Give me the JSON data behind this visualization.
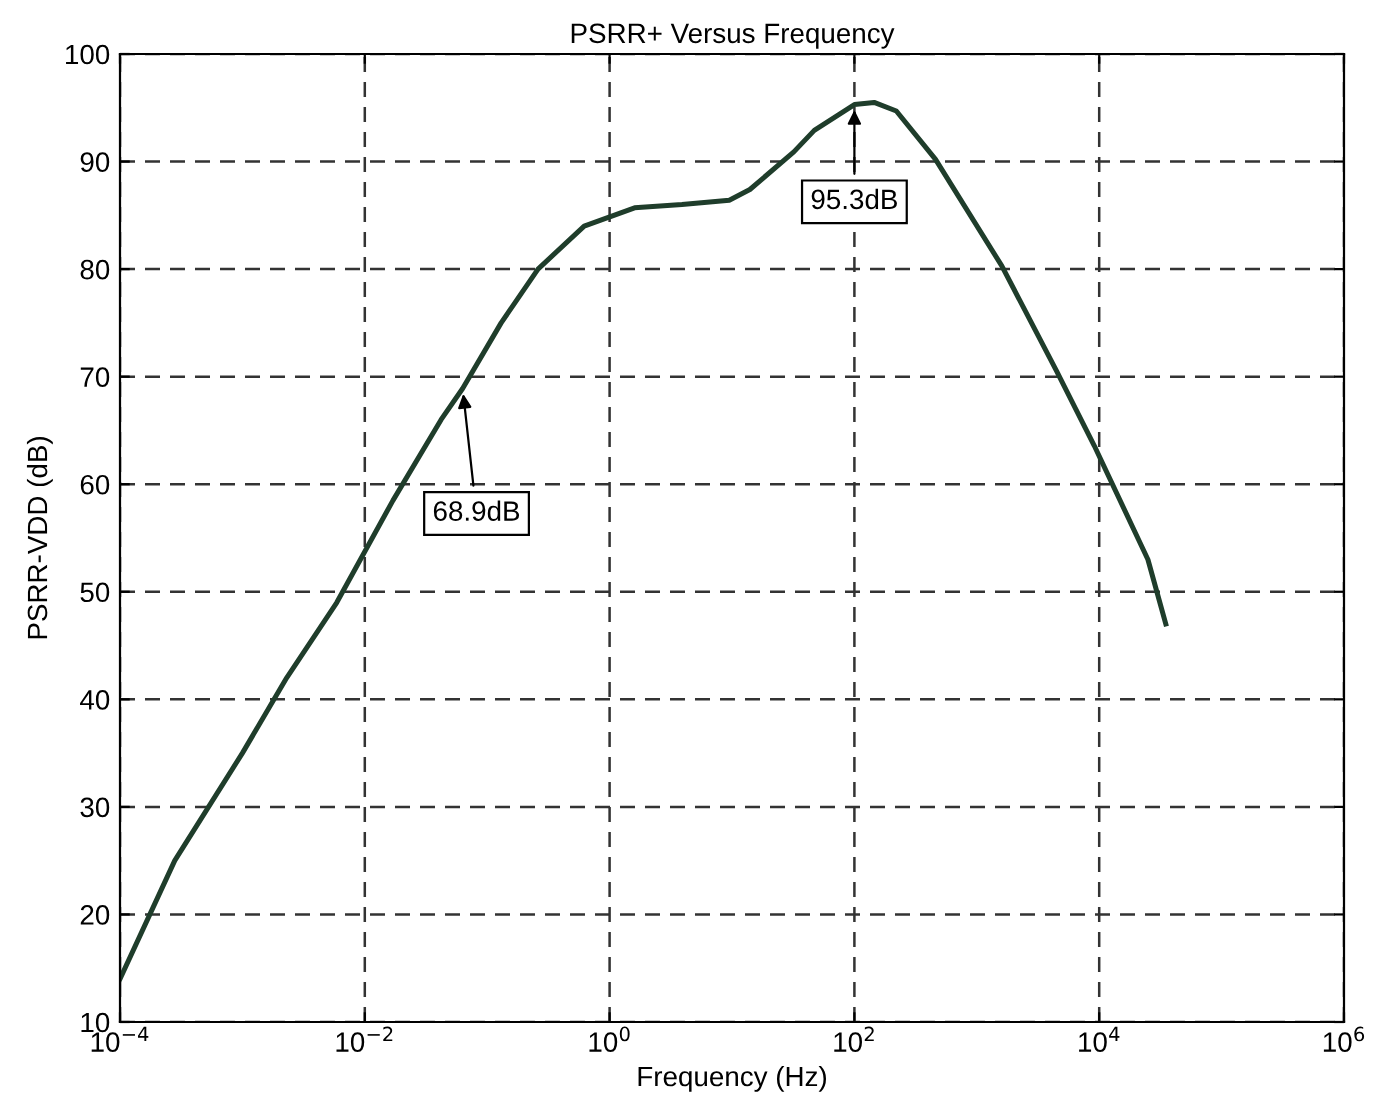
{
  "chart_data": {
    "type": "line",
    "title": "PSRR+ Versus Frequency",
    "xlabel": "Frequency (Hz)",
    "ylabel": "PSRR-VDD (dB)",
    "log": "x",
    "grid": true,
    "line_style": "solid",
    "xlim": [
      0.0001,
      1000000
    ],
    "ylim": [
      10,
      100
    ],
    "xticks": [
      {
        "value": 0.0001,
        "label": "10$^{−4}$"
      },
      {
        "value": 0.01,
        "label": "10$^{−2}$"
      },
      {
        "value": 1,
        "label": "10$^{0}$"
      },
      {
        "value": 100,
        "label": "10$^{2}$"
      },
      {
        "value": 10000,
        "label": "10$^{4}$"
      },
      {
        "value": 1000000,
        "label": "10$^{6}$"
      }
    ],
    "yticks": [
      10,
      20,
      30,
      40,
      50,
      60,
      70,
      80,
      90,
      100
    ],
    "series": [
      {
        "color": "#1f3d2b",
        "x": [
          0.0001,
          0.00028,
          0.001,
          0.0023,
          0.0059,
          0.017,
          0.042,
          0.063,
          0.13,
          0.26,
          0.62,
          1.6,
          3.9,
          9.5,
          14,
          32,
          47,
          100,
          145,
          220,
          460,
          1600,
          4500,
          9100,
          25000,
          35000
        ],
        "values": [
          14,
          25,
          35,
          42,
          49,
          58.5,
          66,
          68.9,
          75,
          80,
          84,
          85.7,
          86,
          86.4,
          87.4,
          90.9,
          92.9,
          95.3,
          95.5,
          94.7,
          90.2,
          80.3,
          70.5,
          63.6,
          53,
          47
        ]
      }
    ],
    "annotations": [
      {
        "text": "68.9dB",
        "x": 0.063,
        "y": 68.9
      },
      {
        "text": "95.3dB",
        "x": 100,
        "y": 95.3
      }
    ]
  }
}
